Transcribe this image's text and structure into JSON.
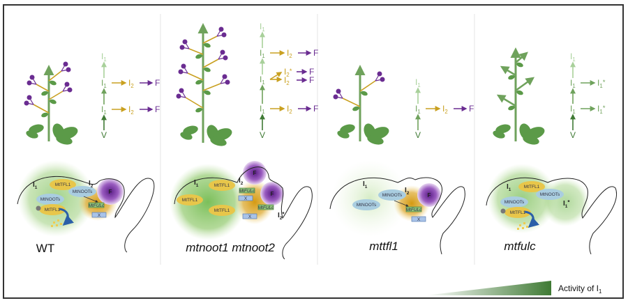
{
  "colors": {
    "vegetative": "#3f7a34",
    "inflorescence_1": "#6fa25c",
    "inflorescence_1_light": "#a8d09a",
    "inflorescence_2": "#c9a020",
    "flower": "#6a2c91",
    "mtnoots": "#a9cde0",
    "mttfl1": "#e8c64a"
  },
  "panels": [
    {
      "genotype": "WT",
      "genotype_italic": false,
      "flow": {
        "top": "I_1",
        "rows": [
          [
            "I_1",
            "I_2",
            "F"
          ],
          [
            "I_1",
            "I_2",
            "F"
          ]
        ],
        "bottom": "V"
      },
      "meristem": {
        "i1": "I_1",
        "i2": "I_2",
        "f": "F",
        "tfl1_a": "MtTFL1",
        "noots_a": "MtNOOTs",
        "noots_b": "MtNOOTs",
        "tfl1_b": "MtTFL1",
        "fulc": "MtFULc",
        "x": "X"
      }
    },
    {
      "genotype": "mtnoot1 mtnoot2",
      "genotype_italic": true,
      "flow": {
        "top": "I_1",
        "rows": [
          [
            "I_1",
            "I_2",
            "F"
          ],
          [
            "I_1",
            "I_2*",
            "F",
            "I_2",
            "F"
          ],
          [
            "I_1",
            "I_2",
            "F"
          ]
        ],
        "bottom": "V"
      },
      "meristem": {
        "i1": "I_1",
        "i2": "I_2",
        "i2star": "I_2*",
        "f1": "F",
        "f2": "F",
        "tfl1_a": "MtTFL1",
        "tfl1_b": "MtTFL1",
        "tfl1_c": "MtTFL1",
        "fulc_a": "MtFULc",
        "x_a": "X",
        "fulc_b": "MtFULc",
        "x_b": "X"
      }
    },
    {
      "genotype": "mttfl1",
      "genotype_italic": true,
      "flow": {
        "top": "I_1",
        "rows": [
          [
            "I_1",
            "I_2",
            "F"
          ]
        ],
        "bottom": "V"
      },
      "meristem": {
        "i1": "I_1",
        "i2": "I_2",
        "f": "F",
        "noots_a": "MtNOOTs",
        "noots_b": "MtNOOTs",
        "fulc": "MtFULc",
        "x": "X"
      }
    },
    {
      "genotype": "mtfulc",
      "genotype_italic": true,
      "flow": {
        "top": "I_1",
        "rows": [
          [
            "I_1",
            "I_1*"
          ],
          [
            "I_1",
            "I_1*"
          ]
        ],
        "bottom": "V"
      },
      "meristem": {
        "i1": "I_1",
        "i1star": "I_1*",
        "tfl1_a": "MtTFL1",
        "noots_a": "MtNOOTs",
        "noots_b": "MtNOOTs",
        "tfl1_b": "MtTFL1"
      }
    }
  ],
  "legend": {
    "label": "Activity of I_1",
    "gradient": [
      "#ffffff",
      "#3f7a34"
    ]
  }
}
